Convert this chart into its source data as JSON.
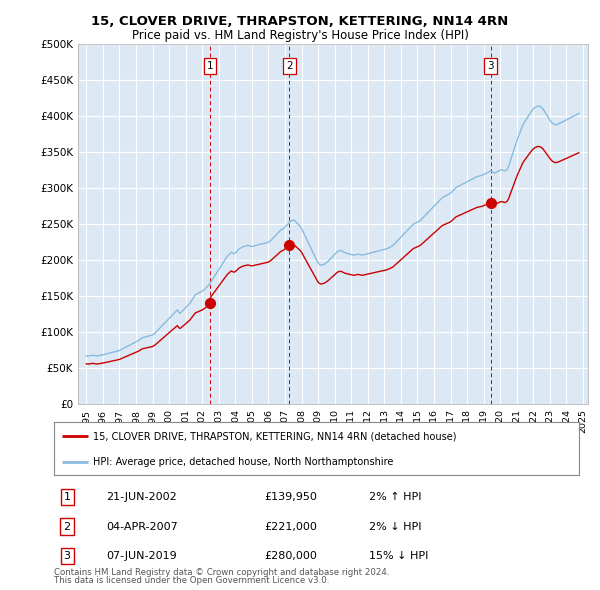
{
  "title": "15, CLOVER DRIVE, THRAPSTON, KETTERING, NN14 4RN",
  "subtitle": "Price paid vs. HM Land Registry's House Price Index (HPI)",
  "legend_line1": "15, CLOVER DRIVE, THRAPSTON, KETTERING, NN14 4RN (detached house)",
  "legend_line2": "HPI: Average price, detached house, North Northamptonshire",
  "footer1": "Contains HM Land Registry data © Crown copyright and database right 2024.",
  "footer2": "This data is licensed under the Open Government Licence v3.0.",
  "transactions": [
    {
      "num": 1,
      "date": "21-JUN-2002",
      "price": "£139,950",
      "hpi": "2% ↑ HPI"
    },
    {
      "num": 2,
      "date": "04-APR-2007",
      "price": "£221,000",
      "hpi": "2% ↓ HPI"
    },
    {
      "num": 3,
      "date": "07-JUN-2019",
      "price": "£280,000",
      "hpi": "15% ↓ HPI"
    }
  ],
  "hpi_color": "#88bbdd",
  "price_color": "#cc0000",
  "marker_color": "#cc0000",
  "vline_color": "#cc0000",
  "background_color": "#ffffff",
  "chart_bg_color": "#dce9f5",
  "grid_color": "#ffffff",
  "ylim": [
    0,
    500000
  ],
  "yticks": [
    0,
    50000,
    100000,
    150000,
    200000,
    250000,
    300000,
    350000,
    400000,
    450000,
    500000
  ],
  "x_start_year": 1995,
  "x_end_year": 2025,
  "transaction_years": [
    2002.47,
    2007.25,
    2019.43
  ],
  "transaction_prices": [
    139950,
    221000,
    280000
  ],
  "hpi_data": [
    [
      1995.0,
      67000
    ],
    [
      1995.083,
      67200
    ],
    [
      1995.167,
      66800
    ],
    [
      1995.25,
      67500
    ],
    [
      1995.333,
      67800
    ],
    [
      1995.417,
      68000
    ],
    [
      1995.5,
      67500
    ],
    [
      1995.583,
      67200
    ],
    [
      1995.667,
      67000
    ],
    [
      1995.75,
      67300
    ],
    [
      1995.833,
      67800
    ],
    [
      1995.917,
      68200
    ],
    [
      1996.0,
      68500
    ],
    [
      1996.083,
      69000
    ],
    [
      1996.167,
      69500
    ],
    [
      1996.25,
      70000
    ],
    [
      1996.333,
      70500
    ],
    [
      1996.417,
      71000
    ],
    [
      1996.5,
      71500
    ],
    [
      1996.583,
      72000
    ],
    [
      1996.667,
      72500
    ],
    [
      1996.75,
      73000
    ],
    [
      1996.833,
      73500
    ],
    [
      1996.917,
      74000
    ],
    [
      1997.0,
      74500
    ],
    [
      1997.083,
      75500
    ],
    [
      1997.167,
      76500
    ],
    [
      1997.25,
      77500
    ],
    [
      1997.333,
      78500
    ],
    [
      1997.417,
      79500
    ],
    [
      1997.5,
      80500
    ],
    [
      1997.583,
      81500
    ],
    [
      1997.667,
      82500
    ],
    [
      1997.75,
      83500
    ],
    [
      1997.833,
      84500
    ],
    [
      1997.917,
      85500
    ],
    [
      1998.0,
      86500
    ],
    [
      1998.083,
      87500
    ],
    [
      1998.167,
      88500
    ],
    [
      1998.25,
      90000
    ],
    [
      1998.333,
      91500
    ],
    [
      1998.417,
      92500
    ],
    [
      1998.5,
      93000
    ],
    [
      1998.583,
      93500
    ],
    [
      1998.667,
      94000
    ],
    [
      1998.75,
      94500
    ],
    [
      1998.833,
      95000
    ],
    [
      1998.917,
      95500
    ],
    [
      1999.0,
      96000
    ],
    [
      1999.083,
      97500
    ],
    [
      1999.167,
      99000
    ],
    [
      1999.25,
      101000
    ],
    [
      1999.333,
      103000
    ],
    [
      1999.417,
      105000
    ],
    [
      1999.5,
      107000
    ],
    [
      1999.583,
      109000
    ],
    [
      1999.667,
      111000
    ],
    [
      1999.75,
      113000
    ],
    [
      1999.833,
      115000
    ],
    [
      1999.917,
      117000
    ],
    [
      2000.0,
      119000
    ],
    [
      2000.083,
      121000
    ],
    [
      2000.167,
      123000
    ],
    [
      2000.25,
      125000
    ],
    [
      2000.333,
      127000
    ],
    [
      2000.417,
      129000
    ],
    [
      2000.5,
      131000
    ],
    [
      2000.583,
      128000
    ],
    [
      2000.667,
      126000
    ],
    [
      2000.75,
      128000
    ],
    [
      2000.833,
      130000
    ],
    [
      2000.917,
      132000
    ],
    [
      2001.0,
      134000
    ],
    [
      2001.083,
      136000
    ],
    [
      2001.167,
      138000
    ],
    [
      2001.25,
      140000
    ],
    [
      2001.333,
      143000
    ],
    [
      2001.417,
      146000
    ],
    [
      2001.5,
      149000
    ],
    [
      2001.583,
      152000
    ],
    [
      2001.667,
      153000
    ],
    [
      2001.75,
      154000
    ],
    [
      2001.833,
      155000
    ],
    [
      2001.917,
      156000
    ],
    [
      2002.0,
      157000
    ],
    [
      2002.083,
      158500
    ],
    [
      2002.167,
      160000
    ],
    [
      2002.25,
      162000
    ],
    [
      2002.333,
      164000
    ],
    [
      2002.417,
      166000
    ],
    [
      2002.5,
      169000
    ],
    [
      2002.583,
      172000
    ],
    [
      2002.667,
      175000
    ],
    [
      2002.75,
      178000
    ],
    [
      2002.833,
      181000
    ],
    [
      2002.917,
      184000
    ],
    [
      2003.0,
      187000
    ],
    [
      2003.083,
      190000
    ],
    [
      2003.167,
      193000
    ],
    [
      2003.25,
      196000
    ],
    [
      2003.333,
      199000
    ],
    [
      2003.417,
      202000
    ],
    [
      2003.5,
      205000
    ],
    [
      2003.583,
      207000
    ],
    [
      2003.667,
      209000
    ],
    [
      2003.75,
      211000
    ],
    [
      2003.833,
      210000
    ],
    [
      2003.917,
      209000
    ],
    [
      2004.0,
      210000
    ],
    [
      2004.083,
      212000
    ],
    [
      2004.167,
      214000
    ],
    [
      2004.25,
      216000
    ],
    [
      2004.333,
      217000
    ],
    [
      2004.417,
      218000
    ],
    [
      2004.5,
      219000
    ],
    [
      2004.583,
      219500
    ],
    [
      2004.667,
      220000
    ],
    [
      2004.75,
      220500
    ],
    [
      2004.833,
      220000
    ],
    [
      2004.917,
      219500
    ],
    [
      2005.0,
      219000
    ],
    [
      2005.083,
      219500
    ],
    [
      2005.167,
      220000
    ],
    [
      2005.25,
      220500
    ],
    [
      2005.333,
      221000
    ],
    [
      2005.417,
      221500
    ],
    [
      2005.5,
      222000
    ],
    [
      2005.583,
      222500
    ],
    [
      2005.667,
      223000
    ],
    [
      2005.75,
      223500
    ],
    [
      2005.833,
      224000
    ],
    [
      2005.917,
      224500
    ],
    [
      2006.0,
      225000
    ],
    [
      2006.083,
      226500
    ],
    [
      2006.167,
      228000
    ],
    [
      2006.25,
      230000
    ],
    [
      2006.333,
      232000
    ],
    [
      2006.417,
      234000
    ],
    [
      2006.5,
      236000
    ],
    [
      2006.583,
      238000
    ],
    [
      2006.667,
      240000
    ],
    [
      2006.75,
      242000
    ],
    [
      2006.833,
      243000
    ],
    [
      2006.917,
      244000
    ],
    [
      2007.0,
      246000
    ],
    [
      2007.083,
      248000
    ],
    [
      2007.167,
      250000
    ],
    [
      2007.25,
      252000
    ],
    [
      2007.333,
      254000
    ],
    [
      2007.417,
      255000
    ],
    [
      2007.5,
      256000
    ],
    [
      2007.583,
      255000
    ],
    [
      2007.667,
      253000
    ],
    [
      2007.75,
      251000
    ],
    [
      2007.833,
      249000
    ],
    [
      2007.917,
      247000
    ],
    [
      2008.0,
      244000
    ],
    [
      2008.083,
      240000
    ],
    [
      2008.167,
      236000
    ],
    [
      2008.25,
      232000
    ],
    [
      2008.333,
      228000
    ],
    [
      2008.417,
      224000
    ],
    [
      2008.5,
      220000
    ],
    [
      2008.583,
      216000
    ],
    [
      2008.667,
      212000
    ],
    [
      2008.75,
      208000
    ],
    [
      2008.833,
      204000
    ],
    [
      2008.917,
      200000
    ],
    [
      2009.0,
      196000
    ],
    [
      2009.083,
      194000
    ],
    [
      2009.167,
      193000
    ],
    [
      2009.25,
      193500
    ],
    [
      2009.333,
      194000
    ],
    [
      2009.417,
      195000
    ],
    [
      2009.5,
      196500
    ],
    [
      2009.583,
      198000
    ],
    [
      2009.667,
      200000
    ],
    [
      2009.75,
      202000
    ],
    [
      2009.833,
      204000
    ],
    [
      2009.917,
      206000
    ],
    [
      2010.0,
      208000
    ],
    [
      2010.083,
      210000
    ],
    [
      2010.167,
      212000
    ],
    [
      2010.25,
      213000
    ],
    [
      2010.333,
      213500
    ],
    [
      2010.417,
      213000
    ],
    [
      2010.5,
      212000
    ],
    [
      2010.583,
      211000
    ],
    [
      2010.667,
      210000
    ],
    [
      2010.75,
      209500
    ],
    [
      2010.833,
      209000
    ],
    [
      2010.917,
      208500
    ],
    [
      2011.0,
      208000
    ],
    [
      2011.083,
      207500
    ],
    [
      2011.167,
      207000
    ],
    [
      2011.25,
      207500
    ],
    [
      2011.333,
      208000
    ],
    [
      2011.417,
      208500
    ],
    [
      2011.5,
      208000
    ],
    [
      2011.583,
      207500
    ],
    [
      2011.667,
      207000
    ],
    [
      2011.75,
      207500
    ],
    [
      2011.833,
      208000
    ],
    [
      2011.917,
      208500
    ],
    [
      2012.0,
      209000
    ],
    [
      2012.083,
      209500
    ],
    [
      2012.167,
      210000
    ],
    [
      2012.25,
      210500
    ],
    [
      2012.333,
      211000
    ],
    [
      2012.417,
      211500
    ],
    [
      2012.5,
      212000
    ],
    [
      2012.583,
      212500
    ],
    [
      2012.667,
      213000
    ],
    [
      2012.75,
      213500
    ],
    [
      2012.833,
      214000
    ],
    [
      2012.917,
      214500
    ],
    [
      2013.0,
      215000
    ],
    [
      2013.083,
      215500
    ],
    [
      2013.167,
      216000
    ],
    [
      2013.25,
      217000
    ],
    [
      2013.333,
      218000
    ],
    [
      2013.417,
      219000
    ],
    [
      2013.5,
      220000
    ],
    [
      2013.583,
      222000
    ],
    [
      2013.667,
      224000
    ],
    [
      2013.75,
      226000
    ],
    [
      2013.833,
      228000
    ],
    [
      2013.917,
      230000
    ],
    [
      2014.0,
      232000
    ],
    [
      2014.083,
      234000
    ],
    [
      2014.167,
      236000
    ],
    [
      2014.25,
      238000
    ],
    [
      2014.333,
      240000
    ],
    [
      2014.417,
      242000
    ],
    [
      2014.5,
      244000
    ],
    [
      2014.583,
      246000
    ],
    [
      2014.667,
      248000
    ],
    [
      2014.75,
      250000
    ],
    [
      2014.833,
      251000
    ],
    [
      2014.917,
      252000
    ],
    [
      2015.0,
      253000
    ],
    [
      2015.083,
      254000
    ],
    [
      2015.167,
      255000
    ],
    [
      2015.25,
      257000
    ],
    [
      2015.333,
      259000
    ],
    [
      2015.417,
      261000
    ],
    [
      2015.5,
      263000
    ],
    [
      2015.583,
      265000
    ],
    [
      2015.667,
      267000
    ],
    [
      2015.75,
      269000
    ],
    [
      2015.833,
      271000
    ],
    [
      2015.917,
      273000
    ],
    [
      2016.0,
      275000
    ],
    [
      2016.083,
      277000
    ],
    [
      2016.167,
      279000
    ],
    [
      2016.25,
      281000
    ],
    [
      2016.333,
      283000
    ],
    [
      2016.417,
      285000
    ],
    [
      2016.5,
      287000
    ],
    [
      2016.583,
      288000
    ],
    [
      2016.667,
      289000
    ],
    [
      2016.75,
      290000
    ],
    [
      2016.833,
      291000
    ],
    [
      2016.917,
      292000
    ],
    [
      2017.0,
      293000
    ],
    [
      2017.083,
      295000
    ],
    [
      2017.167,
      297000
    ],
    [
      2017.25,
      299000
    ],
    [
      2017.333,
      301000
    ],
    [
      2017.417,
      302000
    ],
    [
      2017.5,
      303000
    ],
    [
      2017.583,
      304000
    ],
    [
      2017.667,
      305000
    ],
    [
      2017.75,
      306000
    ],
    [
      2017.833,
      307000
    ],
    [
      2017.917,
      308000
    ],
    [
      2018.0,
      309000
    ],
    [
      2018.083,
      310000
    ],
    [
      2018.167,
      311000
    ],
    [
      2018.25,
      312000
    ],
    [
      2018.333,
      313000
    ],
    [
      2018.417,
      314000
    ],
    [
      2018.5,
      315000
    ],
    [
      2018.583,
      316000
    ],
    [
      2018.667,
      316500
    ],
    [
      2018.75,
      317000
    ],
    [
      2018.833,
      317500
    ],
    [
      2018.917,
      318000
    ],
    [
      2019.0,
      319000
    ],
    [
      2019.083,
      320000
    ],
    [
      2019.167,
      321000
    ],
    [
      2019.25,
      322000
    ],
    [
      2019.333,
      323000
    ],
    [
      2019.417,
      324000
    ],
    [
      2019.5,
      323000
    ],
    [
      2019.583,
      322000
    ],
    [
      2019.667,
      321000
    ],
    [
      2019.75,
      322000
    ],
    [
      2019.833,
      323000
    ],
    [
      2019.917,
      324000
    ],
    [
      2020.0,
      325000
    ],
    [
      2020.083,
      325500
    ],
    [
      2020.167,
      325000
    ],
    [
      2020.25,
      324000
    ],
    [
      2020.333,
      324500
    ],
    [
      2020.417,
      326000
    ],
    [
      2020.5,
      330000
    ],
    [
      2020.583,
      336000
    ],
    [
      2020.667,
      342000
    ],
    [
      2020.75,
      348000
    ],
    [
      2020.833,
      354000
    ],
    [
      2020.917,
      360000
    ],
    [
      2021.0,
      366000
    ],
    [
      2021.083,
      371000
    ],
    [
      2021.167,
      376000
    ],
    [
      2021.25,
      381000
    ],
    [
      2021.333,
      386000
    ],
    [
      2021.417,
      390000
    ],
    [
      2021.5,
      393000
    ],
    [
      2021.583,
      396000
    ],
    [
      2021.667,
      399000
    ],
    [
      2021.75,
      402000
    ],
    [
      2021.833,
      405000
    ],
    [
      2021.917,
      408000
    ],
    [
      2022.0,
      410000
    ],
    [
      2022.083,
      412000
    ],
    [
      2022.167,
      413000
    ],
    [
      2022.25,
      414000
    ],
    [
      2022.333,
      414000
    ],
    [
      2022.417,
      413500
    ],
    [
      2022.5,
      412000
    ],
    [
      2022.583,
      410000
    ],
    [
      2022.667,
      407000
    ],
    [
      2022.75,
      404000
    ],
    [
      2022.833,
      401000
    ],
    [
      2022.917,
      398000
    ],
    [
      2023.0,
      395000
    ],
    [
      2023.083,
      392000
    ],
    [
      2023.167,
      390000
    ],
    [
      2023.25,
      389000
    ],
    [
      2023.333,
      388000
    ],
    [
      2023.417,
      388500
    ],
    [
      2023.5,
      389000
    ],
    [
      2023.583,
      390000
    ],
    [
      2023.667,
      391000
    ],
    [
      2023.75,
      392000
    ],
    [
      2023.833,
      393000
    ],
    [
      2023.917,
      394000
    ],
    [
      2024.0,
      395000
    ],
    [
      2024.083,
      396000
    ],
    [
      2024.167,
      397000
    ],
    [
      2024.25,
      398000
    ],
    [
      2024.333,
      399000
    ],
    [
      2024.417,
      400000
    ],
    [
      2024.5,
      401000
    ],
    [
      2024.583,
      402000
    ],
    [
      2024.667,
      403000
    ],
    [
      2024.75,
      404000
    ]
  ]
}
